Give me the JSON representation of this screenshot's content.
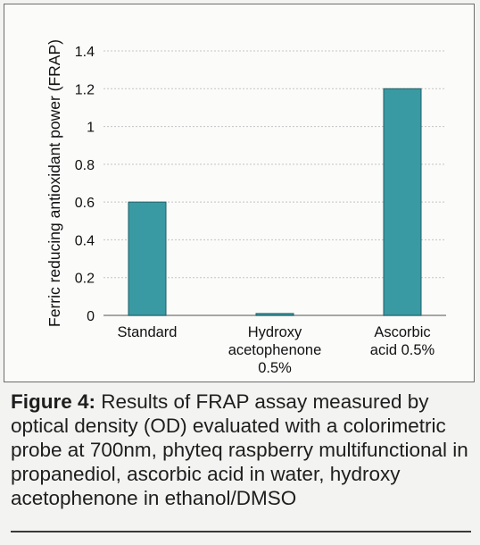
{
  "chart_data": {
    "type": "bar",
    "title": "",
    "xlabel": "",
    "ylabel": "Ferric reducing antioxidant power (FRAP)",
    "categories": [
      [
        "Standard"
      ],
      [
        "Hydroxy",
        "acetophenone",
        "0.5%"
      ],
      [
        "Ascorbic",
        "acid 0.5%"
      ]
    ],
    "values": [
      0.6,
      0.01,
      1.2
    ],
    "ylim": [
      0,
      1.4
    ],
    "yticks": [
      {
        "value": 0,
        "label": "0"
      },
      {
        "value": 0.2,
        "label": "0.2"
      },
      {
        "value": 0.4,
        "label": "0.4"
      },
      {
        "value": 0.6,
        "label": "0.6"
      },
      {
        "value": 0.8,
        "label": "0.8"
      },
      {
        "value": 1.0,
        "label": "1"
      },
      {
        "value": 1.2,
        "label": "1.2"
      },
      {
        "value": 1.4,
        "label": "1.4"
      }
    ],
    "grid": true,
    "bar_color": "#3a9aa4",
    "bar_edge_color": "#1e5f66"
  },
  "caption": {
    "label": "Figure 4:",
    "text": " Results of FRAP assay measured by optical density (OD) evaluated with a colorimetric probe at 700nm, phyteq raspberry multifunctional in propanediol, ascorbic acid in water, hydroxy acetophenone in ethanol/DMSO"
  }
}
